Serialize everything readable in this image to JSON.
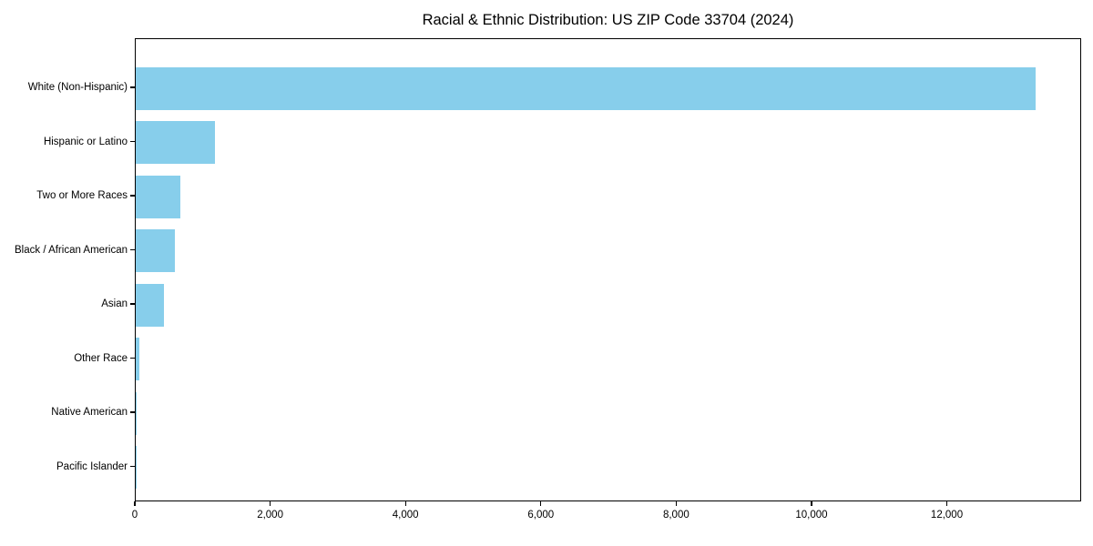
{
  "chart_data": {
    "type": "bar",
    "orientation": "horizontal",
    "title": "Racial & Ethnic Distribution: US ZIP Code 33704 (2024)",
    "categories": [
      "White (Non-Hispanic)",
      "Hispanic or Latino",
      "Two or More Races",
      "Black / African American",
      "Asian",
      "Other Race",
      "Native American",
      "Pacific Islander"
    ],
    "values": [
      13300,
      1170,
      665,
      580,
      420,
      50,
      15,
      5
    ],
    "xlabel": "",
    "ylabel": "",
    "xlim": [
      0,
      13985
    ],
    "x_ticks": [
      0,
      2000,
      4000,
      6000,
      8000,
      10000,
      12000
    ],
    "x_tick_labels": [
      "0",
      "2,000",
      "4,000",
      "6,000",
      "8,000",
      "10,000",
      "12,000"
    ],
    "bar_color": "#87CEEB",
    "background_color": "#ffffff",
    "spine_color": "#000000",
    "text_color": "#000000",
    "grid": false,
    "legend": null
  }
}
